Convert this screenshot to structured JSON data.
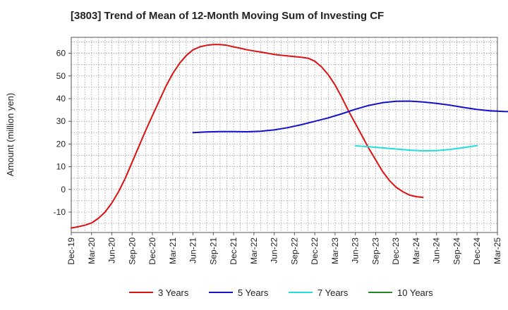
{
  "chart_data": {
    "type": "line",
    "title": "[3803]  Trend of Mean of 12-Month Moving Sum of Investing CF",
    "xlabel": "",
    "ylabel": "Amount (million yen)",
    "x_ticks": [
      "Dec-19",
      "Mar-20",
      "Jun-20",
      "Sep-20",
      "Dec-20",
      "Mar-21",
      "Jun-21",
      "Sep-21",
      "Dec-21",
      "Mar-22",
      "Jun-22",
      "Sep-22",
      "Dec-22",
      "Mar-23",
      "Jun-23",
      "Sep-23",
      "Dec-23",
      "Mar-24",
      "Jun-24",
      "Sep-24",
      "Dec-24",
      "Mar-25"
    ],
    "y_ticks": [
      -10,
      0,
      10,
      20,
      30,
      40,
      50,
      60
    ],
    "ylim": [
      -19,
      67
    ],
    "grid": true,
    "legend_position": "bottom",
    "series": [
      {
        "name": "3 Years",
        "color": "#dd1111",
        "points": [
          [
            "Dec-19",
            -17.0
          ],
          [
            "Jan-20",
            -16.5
          ],
          [
            "Feb-20",
            -15.8
          ],
          [
            "Mar-20",
            -14.8
          ],
          [
            "Apr-20",
            -12.8
          ],
          [
            "May-20",
            -10.0
          ],
          [
            "Jun-20",
            -6.0
          ],
          [
            "Jul-20",
            -1.0
          ],
          [
            "Aug-20",
            5.0
          ],
          [
            "Sep-20",
            12.0
          ],
          [
            "Oct-20",
            19.0
          ],
          [
            "Nov-20",
            26.0
          ],
          [
            "Dec-20",
            32.5
          ],
          [
            "Jan-21",
            39.0
          ],
          [
            "Feb-21",
            45.5
          ],
          [
            "Mar-21",
            51.0
          ],
          [
            "Apr-21",
            55.5
          ],
          [
            "May-21",
            59.0
          ],
          [
            "Jun-21",
            61.5
          ],
          [
            "Jul-21",
            62.8
          ],
          [
            "Aug-21",
            63.5
          ],
          [
            "Sep-21",
            63.8
          ],
          [
            "Oct-21",
            63.8
          ],
          [
            "Nov-21",
            63.5
          ],
          [
            "Dec-21",
            62.8
          ],
          [
            "Jan-22",
            62.2
          ],
          [
            "Feb-22",
            61.5
          ],
          [
            "Mar-22",
            61.0
          ],
          [
            "Apr-22",
            60.5
          ],
          [
            "May-22",
            60.0
          ],
          [
            "Jun-22",
            59.5
          ],
          [
            "Jul-22",
            59.1
          ],
          [
            "Aug-22",
            58.8
          ],
          [
            "Sep-22",
            58.5
          ],
          [
            "Oct-22",
            58.2
          ],
          [
            "Nov-22",
            57.8
          ],
          [
            "Dec-22",
            56.5
          ],
          [
            "Jan-23",
            54.0
          ],
          [
            "Feb-23",
            50.5
          ],
          [
            "Mar-23",
            46.0
          ],
          [
            "Apr-23",
            40.5
          ],
          [
            "May-23",
            34.5
          ],
          [
            "Jun-23",
            29.0
          ],
          [
            "Jul-23",
            23.5
          ],
          [
            "Aug-23",
            18.0
          ],
          [
            "Sep-23",
            13.0
          ],
          [
            "Oct-23",
            8.0
          ],
          [
            "Nov-23",
            4.0
          ],
          [
            "Dec-23",
            1.0
          ],
          [
            "Jan-24",
            -1.0
          ],
          [
            "Feb-24",
            -2.5
          ],
          [
            "Mar-24",
            -3.2
          ],
          [
            "Apr-24",
            -3.5
          ]
        ]
      },
      {
        "name": "5 Years",
        "color": "#1111cc",
        "points": [
          [
            "Jun-21",
            25.0
          ],
          [
            "Aug-21",
            25.3
          ],
          [
            "Oct-21",
            25.5
          ],
          [
            "Dec-21",
            25.5
          ],
          [
            "Feb-22",
            25.4
          ],
          [
            "Apr-22",
            25.6
          ],
          [
            "Jun-22",
            26.2
          ],
          [
            "Aug-22",
            27.2
          ],
          [
            "Oct-22",
            28.5
          ],
          [
            "Dec-22",
            30.0
          ],
          [
            "Feb-23",
            31.5
          ],
          [
            "Apr-23",
            33.3
          ],
          [
            "Jun-23",
            35.3
          ],
          [
            "Aug-23",
            37.0
          ],
          [
            "Oct-23",
            38.2
          ],
          [
            "Dec-23",
            38.8
          ],
          [
            "Feb-24",
            38.9
          ],
          [
            "Apr-24",
            38.5
          ],
          [
            "Jun-24",
            37.9
          ],
          [
            "Aug-24",
            37.1
          ],
          [
            "Oct-24",
            36.1
          ],
          [
            "Dec-24",
            35.2
          ],
          [
            "Feb-25",
            34.6
          ],
          [
            "Apr-25",
            34.3
          ],
          [
            "Jun-25",
            34.2
          ]
        ]
      },
      {
        "name": "7 Years",
        "color": "#22dddd",
        "points": [
          [
            "Jun-23",
            19.2
          ],
          [
            "Aug-23",
            18.8
          ],
          [
            "Oct-23",
            18.3
          ],
          [
            "Dec-23",
            17.8
          ],
          [
            "Feb-24",
            17.3
          ],
          [
            "Apr-24",
            17.0
          ],
          [
            "Jun-24",
            17.1
          ],
          [
            "Aug-24",
            17.6
          ],
          [
            "Oct-24",
            18.4
          ],
          [
            "Dec-24",
            19.3
          ]
        ]
      },
      {
        "name": "10 Years",
        "color": "#228822",
        "points": []
      }
    ]
  }
}
